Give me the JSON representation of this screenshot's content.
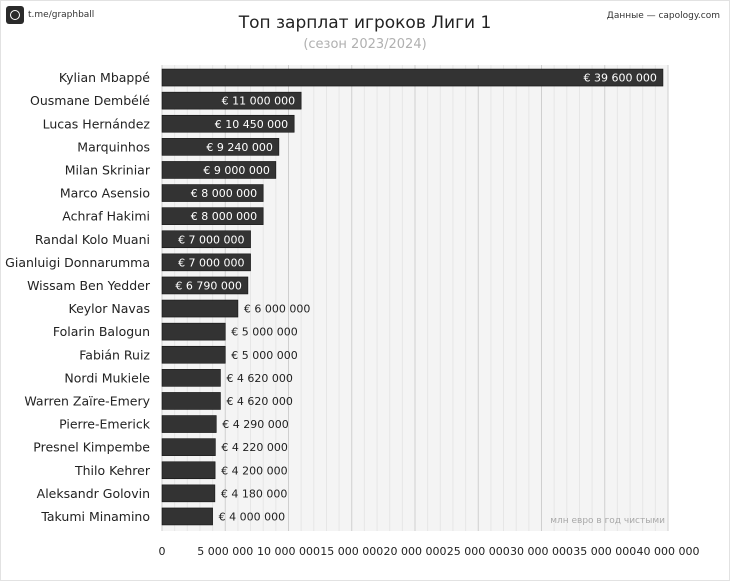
{
  "header": {
    "brand": "t.me/graphball",
    "source": "Данные — capology.com",
    "title": "Топ зарплат игроков Лиги 1",
    "subtitle": "(сезон 2023/2024)"
  },
  "colors": {
    "bar": "#333333",
    "bar_border": "#111111",
    "grid": "#d9d9d9",
    "plot_bg": "#f4f4f4"
  },
  "chart_data": {
    "type": "bar",
    "orientation": "horizontal",
    "title": "Топ зарплат игроков Лиги 1",
    "subtitle": "(сезон 2023/2024)",
    "annotation": "млн евро в год чистыми",
    "xlim": [
      0,
      40000000
    ],
    "x_ticks": [
      0,
      5000000,
      10000000,
      15000000,
      20000000,
      25000000,
      30000000,
      35000000,
      40000000
    ],
    "x_tick_labels": [
      "0",
      "5 000 000",
      "10 000 000",
      "15 000 000",
      "20 000 000",
      "25 000 000",
      "30 000 000",
      "35 000 000",
      "40 000 000"
    ],
    "grid": true,
    "categories": [
      "Kylian Mbappé",
      "Ousmane Dembélé",
      "Lucas Hernández",
      "Marquinhos",
      "Milan Skriniar",
      "Marco Asensio",
      "Achraf Hakimi",
      "Randal Kolo Muani",
      "Gianluigi Donnarumma",
      "Wissam Ben Yedder",
      "Keylor Navas",
      "Folarin Balogun",
      "Fabián Ruiz",
      "Nordi Mukiele",
      "Warren Zaïre-Emery",
      "Pierre-Emerick",
      "Presnel Kimpembe",
      "Thilo Kehrer",
      "Aleksandr Golovin",
      "Takumi Minamino"
    ],
    "values": [
      39600000,
      11000000,
      10450000,
      9240000,
      9000000,
      8000000,
      8000000,
      7000000,
      7000000,
      6790000,
      6000000,
      5000000,
      5000000,
      4620000,
      4620000,
      4290000,
      4220000,
      4200000,
      4180000,
      4000000
    ],
    "value_labels": [
      "€ 39 600 000",
      "€ 11 000 000",
      "€ 10 450 000",
      "€ 9 240 000",
      "€ 9 000 000",
      "€ 8 000 000",
      "€ 8 000 000",
      "€ 7 000 000",
      "€ 7 000 000",
      "€ 6 790 000",
      "€ 6 000 000",
      "€ 5 000 000",
      "€ 5 000 000",
      "€ 4 620 000",
      "€ 4 620 000",
      "€ 4 290 000",
      "€ 4 220 000",
      "€ 4 200 000",
      "€ 4 180 000",
      "€ 4 000 000"
    ]
  }
}
